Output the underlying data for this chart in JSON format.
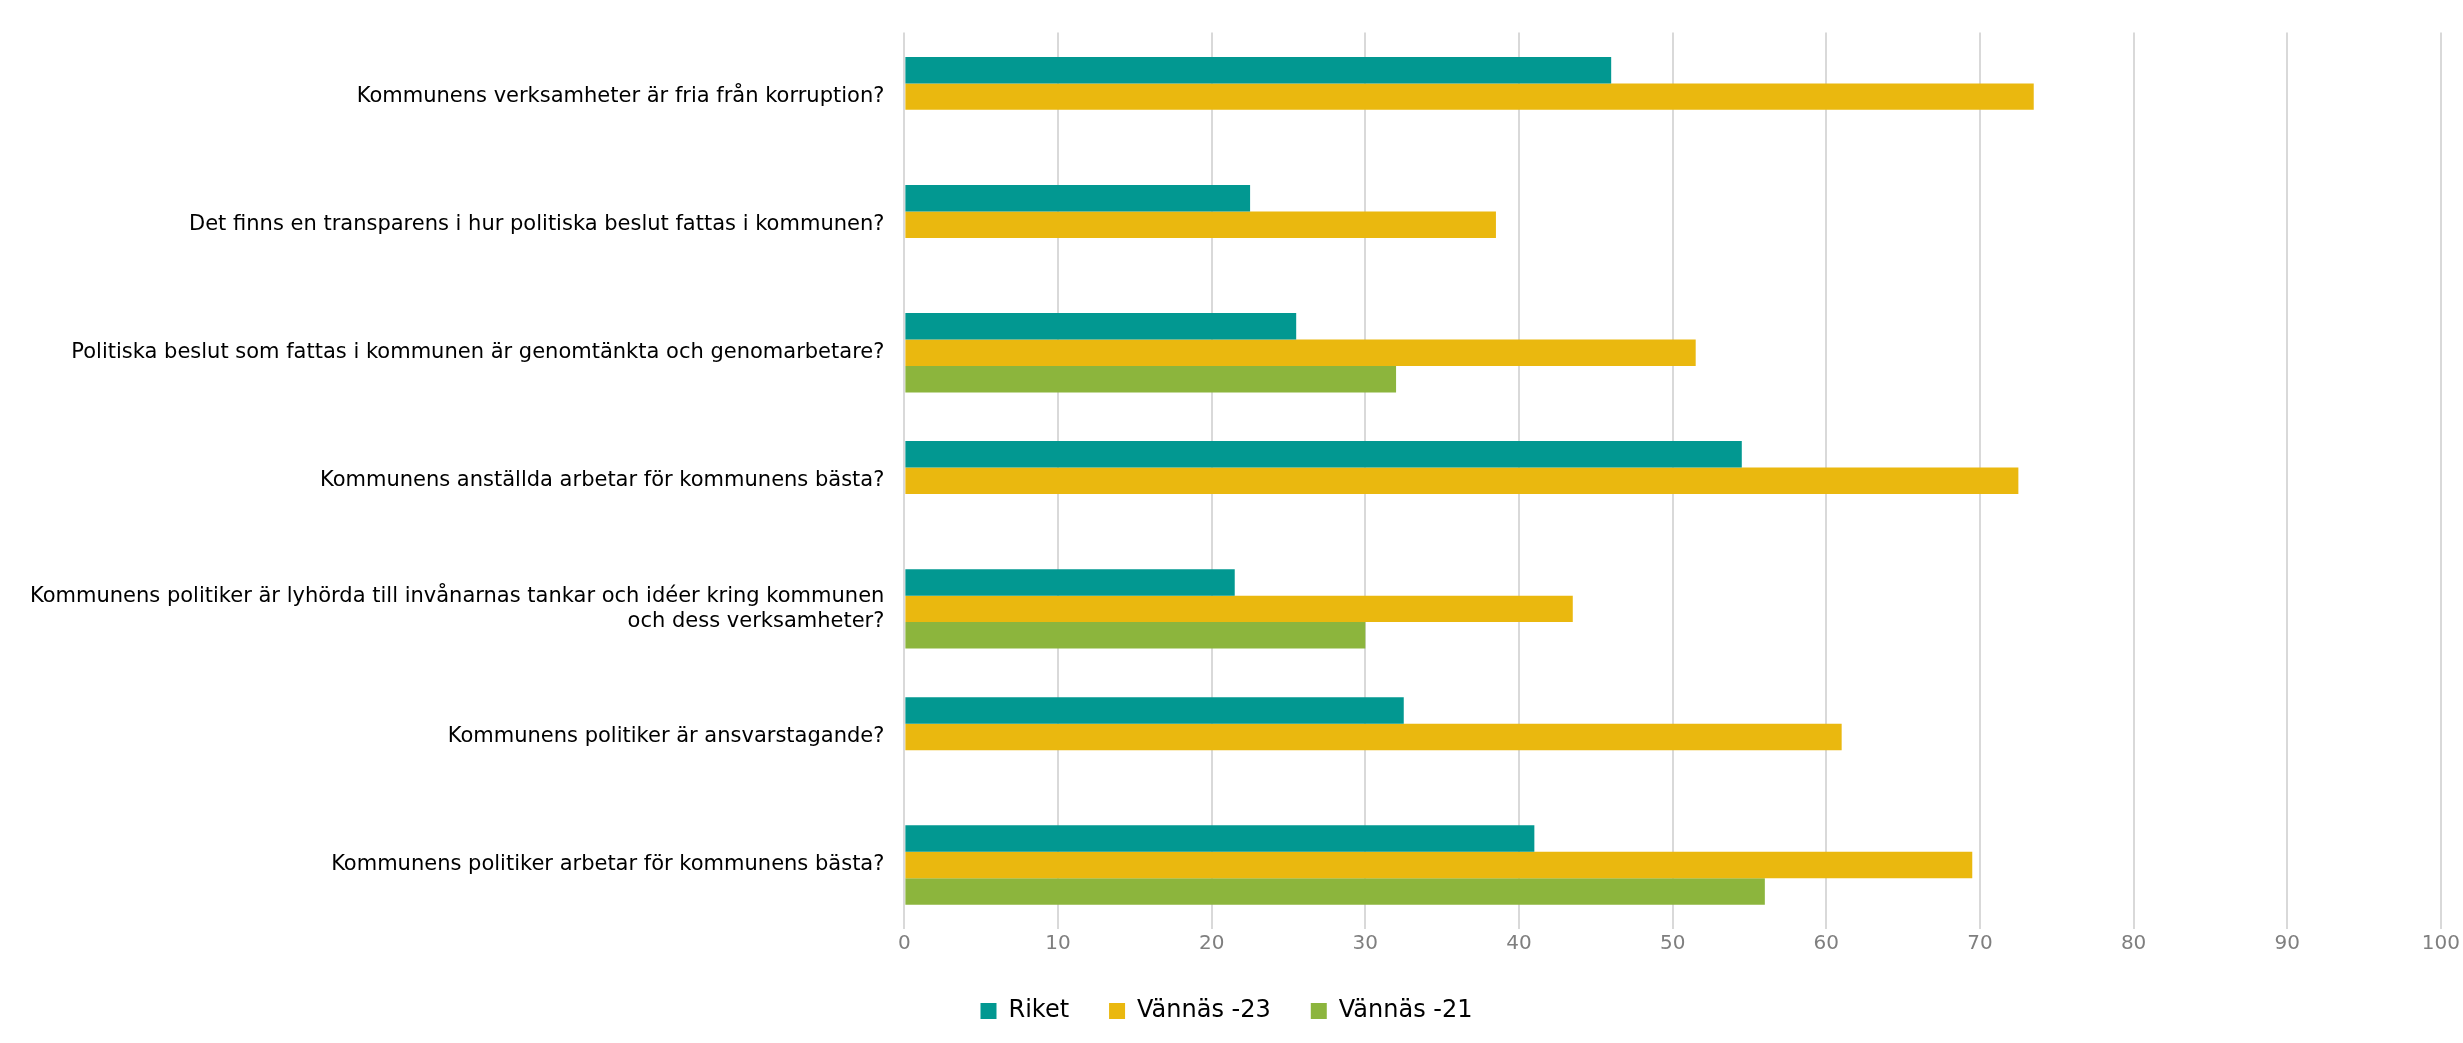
{
  "chart_data": {
    "type": "bar",
    "orientation": "horizontal",
    "categories": [
      "Kommunens verksamheter är fria från korruption?",
      "Det finns en transparens i hur politiska beslut fattas i kommunen?",
      "Politiska beslut som fattas i kommunen är genomtänkta och genomarbetare?",
      "Kommunens anställda arbetar för kommunens bästa?",
      "Kommunens politiker är lyhörda till invånarnas tankar och idéer kring kommunen och dess verksamheter?",
      "Kommunens politiker är ansvarstagande?",
      "Kommunens politiker arbetar för kommunens bästa?"
    ],
    "series": [
      {
        "name": "Riket",
        "color": "#029891",
        "values": [
          46,
          22.5,
          25.5,
          54.5,
          21.5,
          32.5,
          41
        ]
      },
      {
        "name": "Vännäs -23",
        "color": "#eab80f",
        "values": [
          73.5,
          38.5,
          51.5,
          72.5,
          43.5,
          61,
          69.5
        ]
      },
      {
        "name": "Vännäs -21",
        "color": "#8cb53d",
        "values": [
          null,
          null,
          32,
          null,
          30,
          null,
          56
        ]
      }
    ],
    "xlim": [
      0,
      100
    ],
    "xticks": [
      0,
      10,
      20,
      30,
      40,
      50,
      60,
      70,
      80,
      90,
      100
    ],
    "grid": "x",
    "legend": "bottom"
  }
}
